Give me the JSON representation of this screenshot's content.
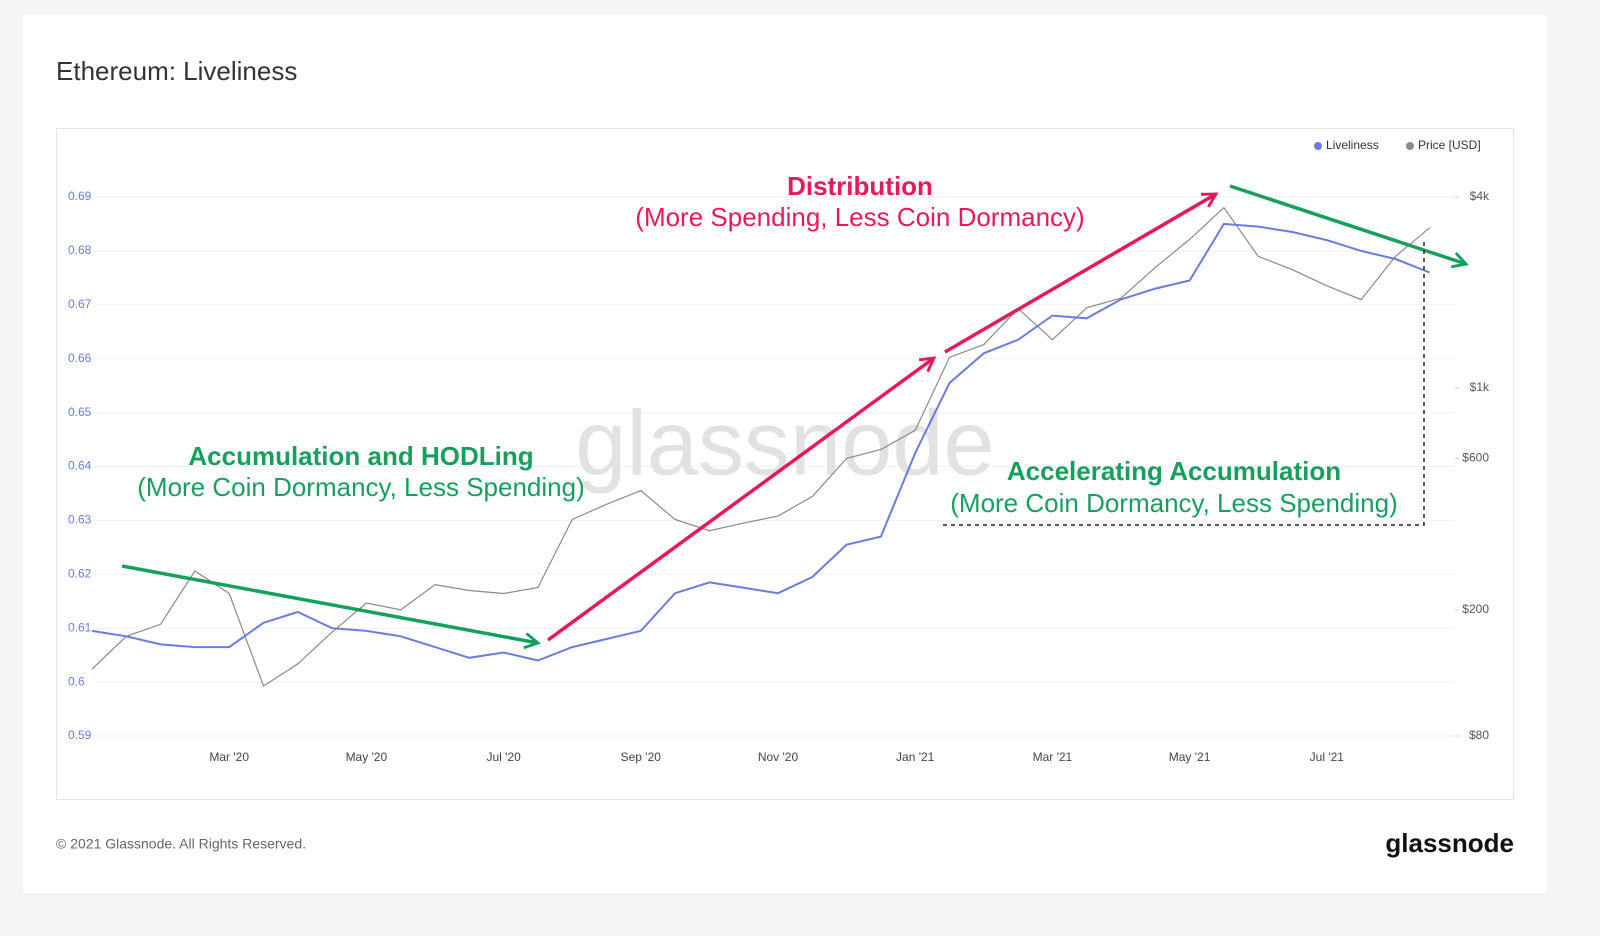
{
  "chart_data": {
    "type": "line",
    "title": "Ethereum: Liveliness",
    "categories": [
      null,
      null,
      null,
      null,
      "Mar '20",
      null,
      null,
      null,
      "May '20",
      null,
      null,
      null,
      "Jul '20",
      null,
      null,
      null,
      "Sep '20",
      null,
      null,
      null,
      "Nov '20",
      null,
      null,
      null,
      "Jan '21",
      null,
      null,
      null,
      "Mar '21",
      null,
      null,
      null,
      "May '21",
      null,
      null,
      null,
      "Jul '21",
      null,
      null,
      null
    ],
    "series": [
      {
        "name": "Liveliness",
        "color": "#6b7ce0",
        "axis": "y",
        "values": [
          0.6095,
          0.6085,
          0.607,
          0.6065,
          0.6065,
          0.611,
          0.613,
          0.61,
          0.6095,
          0.6085,
          0.6065,
          0.6045,
          0.6055,
          0.604,
          0.6065,
          0.608,
          0.6095,
          0.6165,
          0.6185,
          0.6175,
          0.6165,
          0.6195,
          0.6255,
          0.627,
          0.6425,
          0.6555,
          0.661,
          0.6635,
          0.668,
          0.6675,
          0.671,
          0.673,
          0.6745,
          0.685,
          0.6845,
          0.6835,
          0.682,
          0.68,
          0.6785,
          0.676
        ]
      },
      {
        "name": "Price [USD]",
        "color": "#8a8a8a",
        "axis": "y2",
        "values": [
          130,
          165,
          180,
          265,
          225,
          115,
          135,
          170,
          210,
          200,
          240,
          230,
          225,
          235,
          385,
          430,
          475,
          385,
          355,
          375,
          395,
          455,
          600,
          640,
          735,
          1250,
          1370,
          1780,
          1420,
          1790,
          1920,
          2400,
          2940,
          3700,
          2600,
          2360,
          2100,
          1900,
          2600,
          3200
        ]
      }
    ],
    "ylim": [
      0.59,
      0.69
    ],
    "yticks": [
      0.59,
      0.6,
      0.61,
      0.62,
      0.63,
      0.64,
      0.65,
      0.66,
      0.67,
      0.68,
      0.69
    ],
    "y2lim": [
      80,
      4000
    ],
    "y2log": true,
    "y2ticks": [
      {
        "value": 80,
        "label": "$80"
      },
      {
        "value": 200,
        "label": "$200"
      },
      {
        "value": 600,
        "label": "$600"
      },
      {
        "value": 1000,
        "label": "$1k"
      },
      {
        "value": 4000,
        "label": "$4k"
      }
    ],
    "grid": true,
    "legend": "top-right",
    "annotations": [
      {
        "text": "Distribution",
        "color": "#e8195a",
        "bold": true
      },
      {
        "text": "(More Spending, Less Coin Dormancy)",
        "color": "#e8195a",
        "bold": false
      },
      {
        "text": "Accumulation and HODLing",
        "color": "#17a05d",
        "bold": true
      },
      {
        "text": "(More Coin Dormancy, Less Spending)",
        "color": "#17a05d",
        "bold": false
      },
      {
        "text": "Accelerating Accumulation",
        "color": "#17a05d",
        "bold": true
      },
      {
        "text": "(More Coin Dormancy, Less Spending)",
        "color": "#17a05d",
        "bold": false
      }
    ],
    "watermark": "glassnode",
    "footer": "© 2021 Glassnode. All Rights Reserved.",
    "logo": "glassnode"
  }
}
